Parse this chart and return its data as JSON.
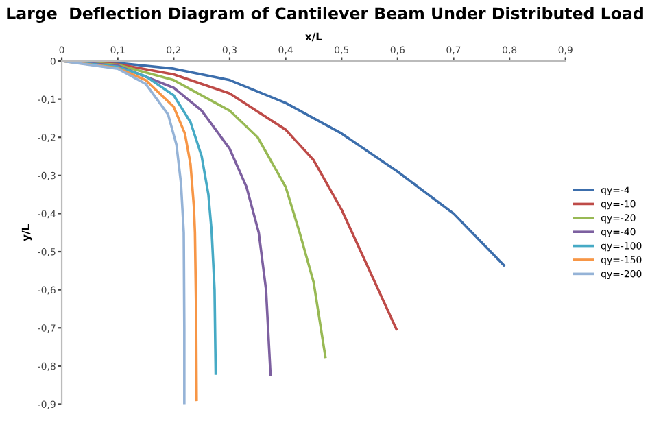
{
  "chart_data": {
    "type": "line",
    "title": "Large  Deflection Diagram of Cantilever Beam Under Distributed Load",
    "xlabel": "x/L",
    "ylabel": "y/L",
    "xlim": [
      0,
      0.9
    ],
    "ylim": [
      -0.9,
      0
    ],
    "xticks": [
      0,
      {
        "value": 0.1,
        "label": "0,1"
      },
      {
        "value": 0.2,
        "label": "0,2"
      },
      {
        "value": 0.3,
        "label": "0,3"
      },
      {
        "value": 0.4,
        "label": "0,4"
      },
      {
        "value": 0.5,
        "label": "0,5"
      },
      {
        "value": 0.6,
        "label": "0,6"
      },
      {
        "value": 0.7,
        "label": "0,7"
      },
      {
        "value": 0.8,
        "label": "0,8"
      },
      {
        "value": 0.9,
        "label": "0,9"
      }
    ],
    "yticks": [
      0,
      {
        "value": -0.1,
        "label": "-0,1"
      },
      {
        "value": -0.2,
        "label": "-0,2"
      },
      {
        "value": -0.3,
        "label": "-0,3"
      },
      {
        "value": -0.4,
        "label": "-0,4"
      },
      {
        "value": -0.5,
        "label": "-0,5"
      },
      {
        "value": -0.6,
        "label": "-0,6"
      },
      {
        "value": -0.7,
        "label": "-0,7"
      },
      {
        "value": -0.8,
        "label": "-0,8"
      },
      {
        "value": -0.9,
        "label": "-0,9"
      }
    ],
    "grid": false,
    "legend": "right",
    "marker": "none",
    "line_style": "solid",
    "series": [
      {
        "name": "qy=-4",
        "color": "#3c6eac",
        "x": [
          0,
          0.1,
          0.2,
          0.3,
          0.4,
          0.5,
          0.6,
          0.7,
          0.79
        ],
        "values": [
          0,
          -0.005,
          -0.02,
          -0.05,
          -0.11,
          -0.19,
          -0.29,
          -0.4,
          -0.536
        ]
      },
      {
        "name": "qy=-10",
        "color": "#be4b48",
        "x": [
          0,
          0.1,
          0.2,
          0.3,
          0.4,
          0.45,
          0.5,
          0.55,
          0.598
        ],
        "values": [
          0,
          -0.008,
          -0.035,
          -0.085,
          -0.18,
          -0.26,
          -0.39,
          -0.55,
          -0.704
        ]
      },
      {
        "name": "qy=-20",
        "color": "#98b954",
        "x": [
          0,
          0.1,
          0.2,
          0.3,
          0.35,
          0.4,
          0.425,
          0.45,
          0.471
        ],
        "values": [
          0,
          -0.01,
          -0.05,
          -0.13,
          -0.2,
          -0.33,
          -0.45,
          -0.58,
          -0.776
        ]
      },
      {
        "name": "qy=-40",
        "color": "#7d60a0",
        "x": [
          0,
          0.1,
          0.2,
          0.25,
          0.3,
          0.33,
          0.352,
          0.365,
          0.373
        ],
        "values": [
          0,
          -0.012,
          -0.07,
          -0.13,
          -0.23,
          -0.33,
          -0.45,
          -0.6,
          -0.824
        ]
      },
      {
        "name": "qy=-100",
        "color": "#46aac5",
        "x": [
          0,
          0.1,
          0.15,
          0.2,
          0.23,
          0.25,
          0.262,
          0.268,
          0.273,
          0.275
        ],
        "values": [
          0,
          -0.015,
          -0.04,
          -0.09,
          -0.16,
          -0.25,
          -0.35,
          -0.45,
          -0.6,
          -0.82
        ]
      },
      {
        "name": "qy=-150",
        "color": "#f79646",
        "x": [
          0,
          0.1,
          0.15,
          0.2,
          0.22,
          0.23,
          0.236,
          0.238,
          0.24,
          0.241
        ],
        "values": [
          0,
          -0.018,
          -0.05,
          -0.12,
          -0.19,
          -0.27,
          -0.38,
          -0.45,
          -0.65,
          -0.889
        ]
      },
      {
        "name": "qy=-200",
        "color": "#95b3d7",
        "x": [
          0,
          0.1,
          0.15,
          0.19,
          0.205,
          0.213,
          0.218,
          0.219,
          0.219
        ],
        "values": [
          0,
          -0.02,
          -0.06,
          -0.14,
          -0.22,
          -0.32,
          -0.45,
          -0.7,
          -0.9
        ]
      }
    ]
  }
}
